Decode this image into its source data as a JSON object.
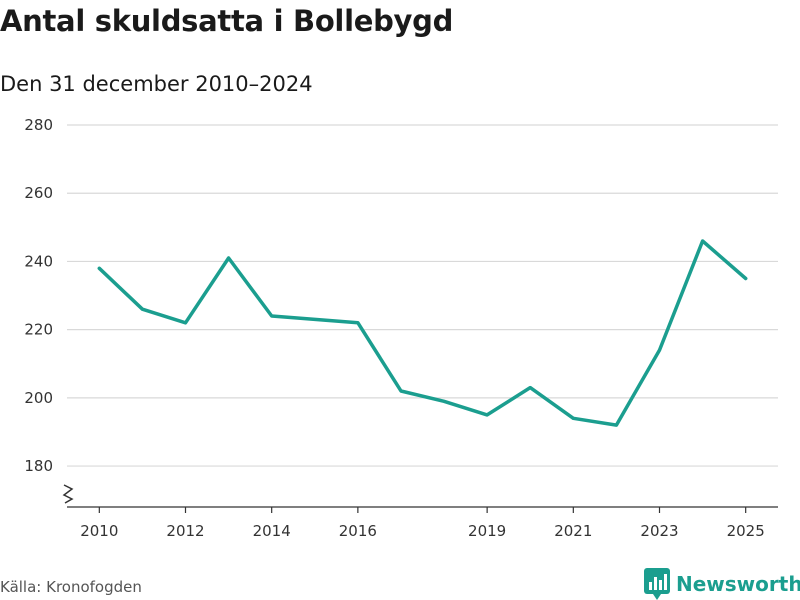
{
  "title": "Antal skuldsatta i Bollebygd",
  "subtitle": "Den 31 december 2010–2024",
  "source": "Källa: Kronofogden",
  "brand": {
    "name": "Newsworthy",
    "icon": "bar-chart-icon",
    "color": "#1b9e8f"
  },
  "chart_data": {
    "type": "line",
    "title": "Antal skuldsatta i Bollebygd",
    "subtitle": "Den 31 december 2010–2024",
    "x": [
      2010,
      2011,
      2012,
      2013,
      2014,
      2015,
      2016,
      2017,
      2018,
      2019,
      2020,
      2021,
      2022,
      2023,
      2024,
      2025
    ],
    "series": [
      {
        "values": [
          238,
          226,
          222,
          241,
          224,
          223,
          222,
          202,
          199,
          195,
          203,
          194,
          192,
          214,
          246,
          235
        ],
        "color": "#1b9e8f"
      }
    ],
    "x_ticks": [
      2010,
      2012,
      2014,
      2016,
      2019,
      2021,
      2023,
      2025
    ],
    "y_ticks": [
      180,
      200,
      220,
      240,
      260,
      280
    ],
    "xlim": [
      2009.25,
      2025.75
    ],
    "ylim": [
      168,
      280
    ],
    "grid": true,
    "y_axis_break": true
  }
}
